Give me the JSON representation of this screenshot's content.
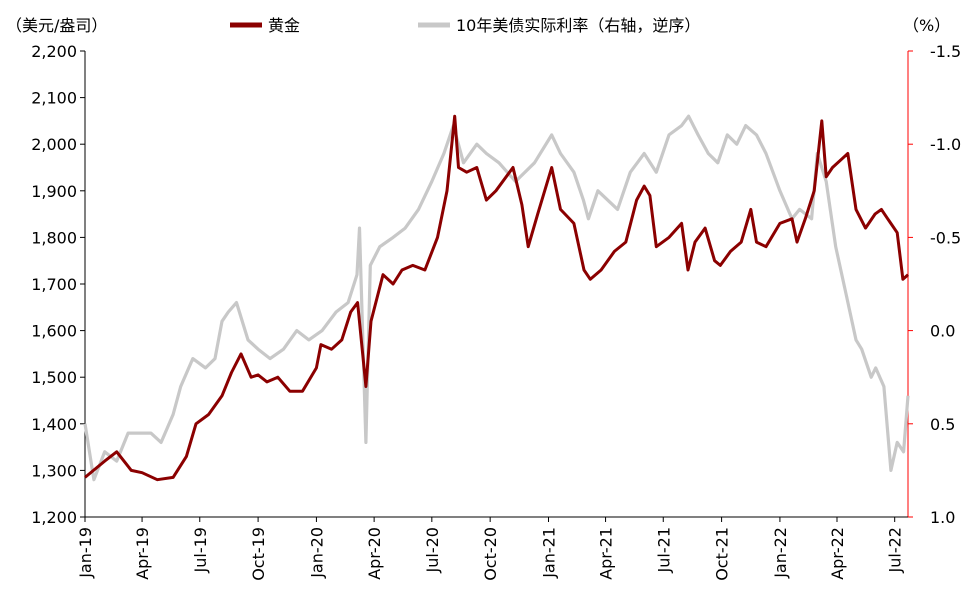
{
  "chart_data": {
    "type": "line",
    "left_unit": "（美元/盎司）",
    "right_unit": "（%）",
    "left_axis": {
      "min": 1200,
      "max": 2200,
      "ticks": [
        1200,
        1300,
        1400,
        1500,
        1600,
        1700,
        1800,
        1900,
        2000,
        2100,
        2200
      ],
      "tick_labels": [
        "1,200",
        "1,300",
        "1,400",
        "1,500",
        "1,600",
        "1,700",
        "1,800",
        "1,900",
        "2,000",
        "2,100",
        "2,200"
      ]
    },
    "right_axis": {
      "inverted": true,
      "top": -1.5,
      "bottom": 1.0,
      "ticks": [
        -1.5,
        -1.0,
        -0.5,
        0.0,
        0.5,
        1.0
      ],
      "tick_labels": [
        "-1.5",
        "-1.0",
        "-0.5",
        "0.0",
        "0.5",
        "1.0"
      ],
      "color": "#ff0000"
    },
    "x_axis": {
      "tick_dates": [
        "2019-01-01",
        "2019-04-01",
        "2019-07-01",
        "2019-10-01",
        "2020-01-01",
        "2020-04-01",
        "2020-07-01",
        "2020-10-01",
        "2021-01-01",
        "2021-04-01",
        "2021-07-01",
        "2021-10-01",
        "2022-01-01",
        "2022-04-01",
        "2022-07-01"
      ],
      "tick_labels": [
        "Jan-19",
        "Apr-19",
        "Jul-19",
        "Oct-19",
        "Jan-20",
        "Apr-20",
        "Jul-20",
        "Oct-20",
        "Jan-21",
        "Apr-21",
        "Jul-21",
        "Oct-21",
        "Jan-22",
        "Apr-22",
        "Jul-22"
      ],
      "start": "2019-01-01",
      "end": "2022-07-22"
    },
    "legend_position": "top",
    "grid": false,
    "series": [
      {
        "name": "黄金",
        "axis": "left",
        "color": "#8b0000",
        "x": [
          "2019-01-01",
          "2019-02-01",
          "2019-02-20",
          "2019-03-15",
          "2019-04-01",
          "2019-04-25",
          "2019-05-20",
          "2019-06-10",
          "2019-06-25",
          "2019-07-15",
          "2019-08-05",
          "2019-08-20",
          "2019-09-04",
          "2019-09-20",
          "2019-10-01",
          "2019-10-15",
          "2019-11-01",
          "2019-11-20",
          "2019-12-10",
          "2020-01-01",
          "2020-01-08",
          "2020-01-25",
          "2020-02-10",
          "2020-02-24",
          "2020-03-06",
          "2020-03-19",
          "2020-03-27",
          "2020-04-15",
          "2020-05-01",
          "2020-05-15",
          "2020-06-01",
          "2020-06-20",
          "2020-07-10",
          "2020-07-25",
          "2020-08-06",
          "2020-08-12",
          "2020-08-25",
          "2020-09-10",
          "2020-09-25",
          "2020-10-10",
          "2020-11-06",
          "2020-11-20",
          "2020-11-30",
          "2020-12-15",
          "2021-01-06",
          "2021-01-20",
          "2021-02-10",
          "2021-02-26",
          "2021-03-08",
          "2021-03-25",
          "2021-04-15",
          "2021-05-03",
          "2021-05-20",
          "2021-06-01",
          "2021-06-10",
          "2021-06-20",
          "2021-07-10",
          "2021-07-30",
          "2021-08-09",
          "2021-08-20",
          "2021-09-05",
          "2021-09-20",
          "2021-09-29",
          "2021-10-15",
          "2021-11-01",
          "2021-11-16",
          "2021-11-25",
          "2021-12-10",
          "2022-01-01",
          "2022-01-20",
          "2022-01-28",
          "2022-02-10",
          "2022-02-24",
          "2022-03-08",
          "2022-03-15",
          "2022-03-25",
          "2022-04-10",
          "2022-04-18",
          "2022-05-01",
          "2022-05-16",
          "2022-05-31",
          "2022-06-10",
          "2022-06-20",
          "2022-07-05",
          "2022-07-14",
          "2022-07-22"
        ],
        "values": [
          1285,
          1320,
          1340,
          1300,
          1295,
          1280,
          1285,
          1330,
          1400,
          1420,
          1460,
          1510,
          1550,
          1500,
          1505,
          1490,
          1500,
          1470,
          1470,
          1520,
          1570,
          1560,
          1580,
          1640,
          1660,
          1480,
          1620,
          1720,
          1700,
          1730,
          1740,
          1730,
          1800,
          1900,
          2060,
          1950,
          1940,
          1950,
          1880,
          1900,
          1950,
          1870,
          1780,
          1850,
          1950,
          1860,
          1830,
          1730,
          1710,
          1730,
          1770,
          1790,
          1880,
          1910,
          1890,
          1780,
          1800,
          1830,
          1730,
          1790,
          1820,
          1750,
          1740,
          1770,
          1790,
          1860,
          1790,
          1780,
          1830,
          1840,
          1790,
          1840,
          1900,
          2050,
          1930,
          1950,
          1970,
          1980,
          1860,
          1820,
          1850,
          1860,
          1840,
          1810,
          1710,
          1720
        ]
      },
      {
        "name": "10年美债实际利率（右轴，逆序）",
        "axis": "right",
        "color": "#c8c8c8",
        "x": [
          "2019-01-01",
          "2019-01-15",
          "2019-02-01",
          "2019-02-20",
          "2019-03-10",
          "2019-03-25",
          "2019-04-15",
          "2019-05-01",
          "2019-05-20",
          "2019-06-01",
          "2019-06-20",
          "2019-07-10",
          "2019-07-25",
          "2019-08-05",
          "2019-08-15",
          "2019-08-28",
          "2019-09-15",
          "2019-10-01",
          "2019-10-20",
          "2019-11-10",
          "2019-12-01",
          "2019-12-20",
          "2020-01-10",
          "2020-02-01",
          "2020-02-20",
          "2020-03-05",
          "2020-03-09",
          "2020-03-19",
          "2020-03-26",
          "2020-04-10",
          "2020-05-01",
          "2020-05-20",
          "2020-06-10",
          "2020-07-01",
          "2020-07-20",
          "2020-08-04",
          "2020-08-20",
          "2020-09-10",
          "2020-09-25",
          "2020-10-15",
          "2020-11-10",
          "2020-12-10",
          "2021-01-06",
          "2021-01-20",
          "2021-02-10",
          "2021-02-25",
          "2021-03-05",
          "2021-03-20",
          "2021-04-20",
          "2021-05-10",
          "2021-06-01",
          "2021-06-20",
          "2021-07-10",
          "2021-07-30",
          "2021-08-10",
          "2021-08-25",
          "2021-09-10",
          "2021-09-25",
          "2021-10-10",
          "2021-10-25",
          "2021-11-08",
          "2021-11-25",
          "2021-12-10",
          "2022-01-01",
          "2022-01-20",
          "2022-02-01",
          "2022-02-20",
          "2022-03-01",
          "2022-03-15",
          "2022-03-30",
          "2022-04-15",
          "2022-05-01",
          "2022-05-10",
          "2022-05-25",
          "2022-06-01",
          "2022-06-14",
          "2022-06-25",
          "2022-07-05",
          "2022-07-15",
          "2022-07-22"
        ],
        "values": [
          0.5,
          0.8,
          0.65,
          0.7,
          0.55,
          0.55,
          0.55,
          0.6,
          0.45,
          0.3,
          0.15,
          0.2,
          0.15,
          -0.05,
          -0.1,
          -0.15,
          0.05,
          0.1,
          0.15,
          0.1,
          0.0,
          0.05,
          0.0,
          -0.1,
          -0.15,
          -0.3,
          -0.55,
          0.6,
          -0.35,
          -0.45,
          -0.5,
          -0.55,
          -0.65,
          -0.8,
          -0.95,
          -1.1,
          -0.9,
          -1.0,
          -0.95,
          -0.9,
          -0.8,
          -0.9,
          -1.05,
          -0.95,
          -0.85,
          -0.7,
          -0.6,
          -0.75,
          -0.65,
          -0.85,
          -0.95,
          -0.85,
          -1.05,
          -1.1,
          -1.15,
          -1.05,
          -0.95,
          -0.9,
          -1.05,
          -1.0,
          -1.1,
          -1.05,
          -0.95,
          -0.75,
          -0.6,
          -0.65,
          -0.6,
          -0.95,
          -0.8,
          -0.45,
          -0.2,
          0.05,
          0.1,
          0.25,
          0.2,
          0.3,
          0.75,
          0.6,
          0.65,
          0.35
        ]
      }
    ]
  }
}
